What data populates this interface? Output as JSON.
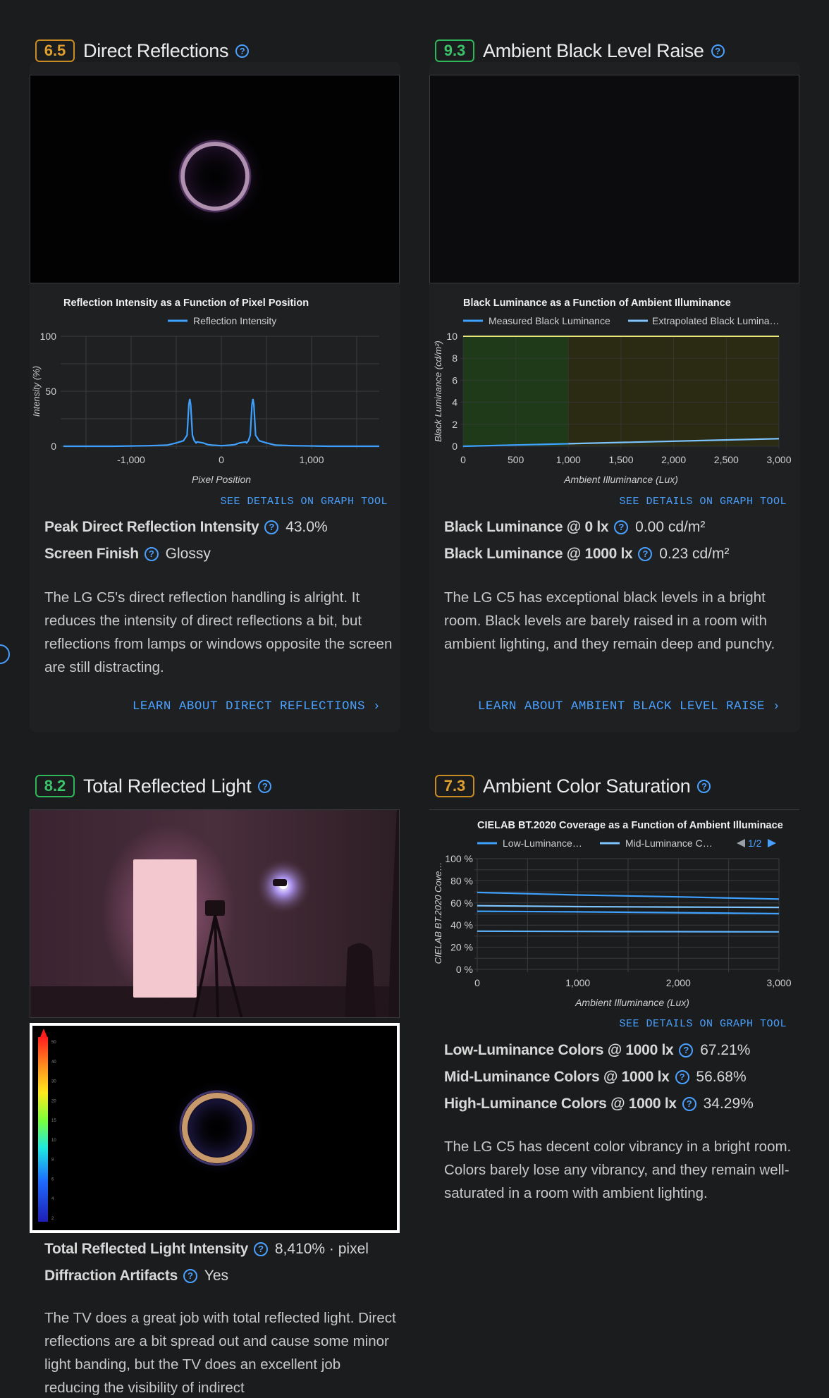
{
  "colors": {
    "accent": "#4aa0ff",
    "score_good": "#2fb85a",
    "score_mid": "#e0a030",
    "line": "#3ea1ff"
  },
  "direct_reflections": {
    "score": "6.5",
    "title": "Direct Reflections",
    "chart_title": "Reflection Intensity as a Function of Pixel Position",
    "legend": "Reflection Intensity",
    "y_label": "Intensity (%)",
    "x_label": "Pixel Position",
    "y_ticks": [
      "100",
      "50",
      "0"
    ],
    "x_ticks": [
      "-1,000",
      "0",
      "1,000"
    ],
    "details_link": "SEE DETAILS ON GRAPH TOOL",
    "specs": [
      {
        "label": "Peak Direct Reflection Intensity",
        "value": "43.0%"
      },
      {
        "label": "Screen Finish",
        "value": "Glossy"
      }
    ],
    "description": "The LG C5's direct reflection handling is alright. It reduces the intensity of direct reflections a bit, but reflections from lamps or windows opposite the screen are still distracting.",
    "learn_link": "LEARN ABOUT DIRECT REFLECTIONS"
  },
  "ambient_black": {
    "score": "9.3",
    "title": "Ambient Black Level Raise",
    "chart_title": "Black Luminance as a Function of Ambient Illuminance",
    "legend": [
      "Measured Black Luminance",
      "Extrapolated Black Lumina…"
    ],
    "y_label": "Black Luminance (cd/m²)",
    "x_label": "Ambient Illuminance (Lux)",
    "y_ticks": [
      "10",
      "8",
      "6",
      "4",
      "2",
      "0"
    ],
    "x_ticks": [
      "0",
      "500",
      "1,000",
      "1,500",
      "2,000",
      "2,500",
      "3,000"
    ],
    "details_link": "SEE DETAILS ON GRAPH TOOL",
    "specs": [
      {
        "label": "Black Luminance @ 0 lx",
        "value": "0.00 cd/m²"
      },
      {
        "label": "Black Luminance @ 1000 lx",
        "value": "0.23 cd/m²"
      }
    ],
    "description": "The LG C5 has exceptional black levels in a bright room. Black levels are barely raised in a room with ambient lighting, and they remain deep and punchy.",
    "learn_link": "LEARN ABOUT AMBIENT BLACK LEVEL RAISE"
  },
  "total_reflected": {
    "score": "8.2",
    "title": "Total Reflected Light",
    "specs": [
      {
        "label": "Total Reflected Light Intensity",
        "value": "8,410% · pixel"
      },
      {
        "label": "Diffraction Artifacts",
        "value": "Yes"
      }
    ],
    "description": "The TV does a great job with total reflected light. Direct reflections are a bit spread out and cause some minor light banding, but the TV does an excellent job reducing the visibility of indirect",
    "scale_ticks": [
      "50",
      "40",
      "30",
      "20",
      "15",
      "10",
      "8",
      "6",
      "4",
      "2"
    ]
  },
  "ambient_color": {
    "score": "7.3",
    "title": "Ambient Color Saturation",
    "chart_title": "CIELAB BT.2020 Coverage as a Function of Ambient Illuminace",
    "legend": [
      "Low-Luminance…",
      "Mid-Luminance C…"
    ],
    "pager": "1/2",
    "y_label": "CIELAB BT.2020 Cove…",
    "x_label": "Ambient Illuminance (Lux)",
    "y_ticks": [
      "100 %",
      "80 %",
      "60 %",
      "40 %",
      "20 %",
      "0 %"
    ],
    "x_ticks": [
      "0",
      "1,000",
      "2,000",
      "3,000"
    ],
    "details_link": "SEE DETAILS ON GRAPH TOOL",
    "specs": [
      {
        "label": "Low-Luminance Colors @ 1000 lx",
        "value": "67.21%"
      },
      {
        "label": "Mid-Luminance Colors @ 1000 lx",
        "value": "56.68%"
      },
      {
        "label": "High-Luminance Colors @ 1000 lx",
        "value": "34.29%"
      }
    ],
    "description": "The LG C5 has decent color vibrancy in a bright room. Colors barely lose any vibrancy, and they remain well-saturated in a room with ambient lighting."
  },
  "chart_data": [
    {
      "type": "line",
      "title": "Reflection Intensity as a Function of Pixel Position",
      "xlabel": "Pixel Position",
      "ylabel": "Intensity (%)",
      "xlim": [
        -1750,
        1750
      ],
      "ylim": [
        0,
        100
      ],
      "grid": true,
      "legend": "top",
      "series": [
        {
          "name": "Reflection Intensity",
          "x": [
            -1750,
            -1200,
            -800,
            -600,
            -500,
            -420,
            -380,
            -360,
            -350,
            -340,
            -320,
            -300,
            -280,
            -270,
            -200,
            -150,
            -100,
            0,
            100,
            150,
            200,
            270,
            280,
            300,
            320,
            340,
            350,
            360,
            380,
            420,
            500,
            600,
            800,
            1200,
            1750
          ],
          "y": [
            0,
            0,
            0.5,
            1,
            3,
            5,
            10,
            38,
            43,
            38,
            10,
            5,
            3,
            4,
            3,
            1.5,
            1,
            0.5,
            1,
            1.5,
            3,
            4,
            3,
            5,
            10,
            38,
            43,
            38,
            10,
            5,
            3,
            1,
            0.5,
            0,
            0
          ]
        }
      ]
    },
    {
      "type": "line",
      "title": "Black Luminance as a Function of Ambient Illuminance",
      "xlabel": "Ambient Illuminance (Lux)",
      "ylabel": "Black Luminance (cd/m²)",
      "xlim": [
        0,
        3000
      ],
      "ylim": [
        0,
        10
      ],
      "grid": true,
      "legend": "top",
      "series": [
        {
          "name": "Measured Black Luminance",
          "x": [
            0,
            1000
          ],
          "y": [
            0.0,
            0.23
          ]
        },
        {
          "name": "Extrapolated Black Lumina…",
          "x": [
            1000,
            3000
          ],
          "y": [
            0.23,
            0.69
          ]
        }
      ]
    },
    {
      "type": "line",
      "title": "CIELAB BT.2020 Coverage as a Function of Ambient Illuminace",
      "xlabel": "Ambient Illuminance (Lux)",
      "ylabel": "CIELAB BT.2020 Cove…",
      "xlim": [
        0,
        3000
      ],
      "ylim": [
        0,
        100
      ],
      "grid": true,
      "legend": "top",
      "series": [
        {
          "name": "",
          "x": [
            0,
            1000,
            2000,
            3000
          ],
          "y": [
            69.5,
            67.21,
            65.5,
            63.5
          ]
        },
        {
          "name": "",
          "x": [
            0,
            1000,
            2000,
            3000
          ],
          "y": [
            57.5,
            56.68,
            56.3,
            56.0
          ]
        },
        {
          "name": "",
          "x": [
            0,
            1000,
            2000,
            3000
          ],
          "y": [
            52.5,
            52.0,
            51.2,
            50.3
          ]
        },
        {
          "name": "",
          "x": [
            0,
            1000,
            2000,
            3000
          ],
          "y": [
            34.5,
            34.29,
            34.1,
            33.9
          ]
        }
      ]
    }
  ]
}
